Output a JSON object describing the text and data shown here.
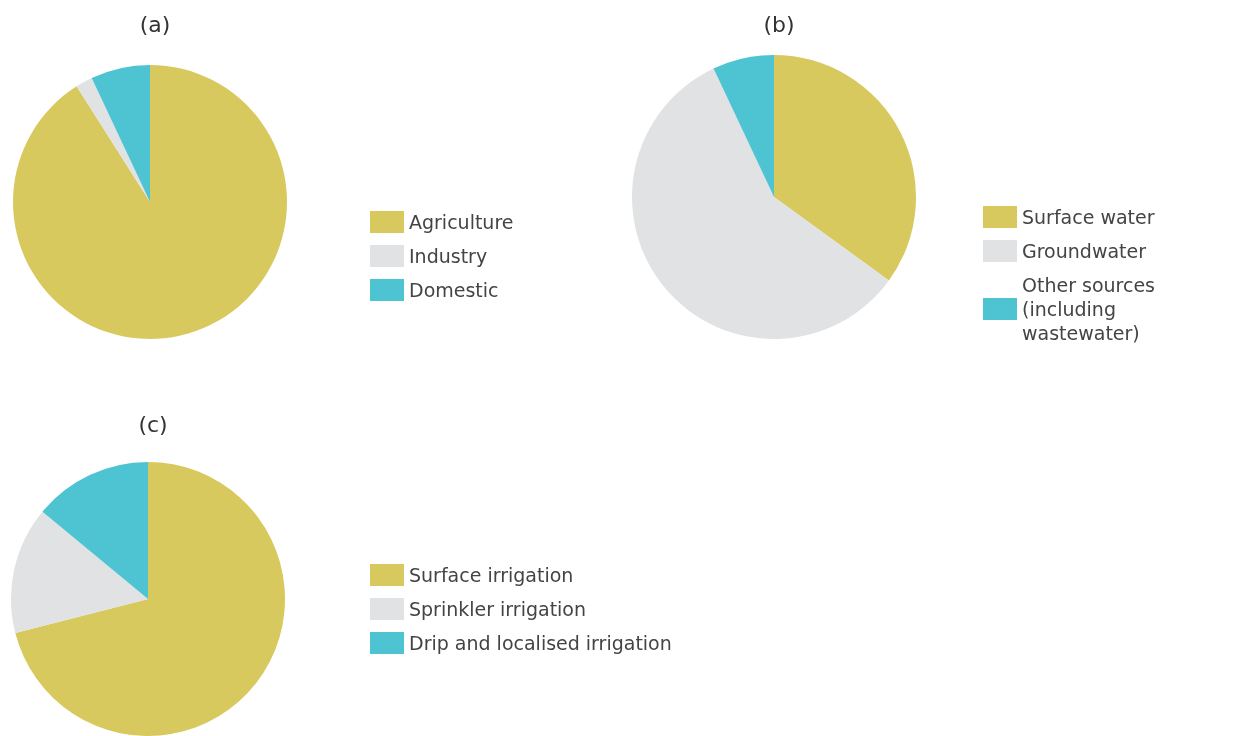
{
  "chart_data": [
    {
      "type": "pie",
      "title": "(a)",
      "categories": [
        "Agriculture",
        "Industry",
        "Domestic"
      ],
      "values": [
        91,
        2,
        7
      ],
      "colors": [
        "#d8c95e",
        "#e1e2e4",
        "#4ec4d3"
      ],
      "legend": "right"
    },
    {
      "type": "pie",
      "title": "(b)",
      "categories": [
        "Surface water",
        "Groundwater",
        "Other sources (including wastewater)"
      ],
      "values": [
        35,
        58,
        7
      ],
      "colors": [
        "#d8c95e",
        "#e1e2e4",
        "#4ec4d3"
      ],
      "legend": "right"
    },
    {
      "type": "pie",
      "title": "(c)",
      "categories": [
        "Surface irrigation",
        "Sprinkler irrigation",
        "Drip and localised irrigation"
      ],
      "values": [
        71,
        15,
        14
      ],
      "colors": [
        "#d8c95e",
        "#e1e2e4",
        "#4ec4d3"
      ],
      "legend": "right"
    }
  ]
}
